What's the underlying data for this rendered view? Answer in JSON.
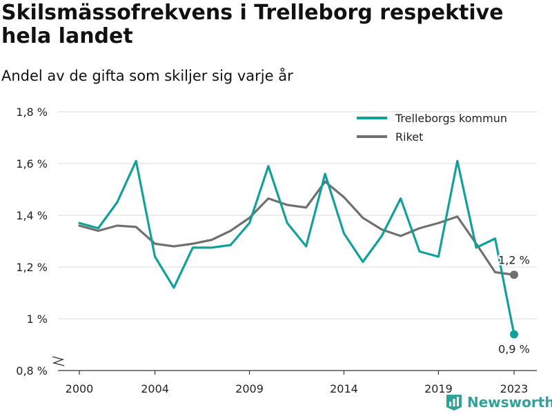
{
  "header": {
    "title": "Skilsmässofrekvens i Trelleborg respektive hela landet",
    "subtitle": "Andel av de gifta som skiljer sig varje år"
  },
  "brand": {
    "name": "Newsworthy",
    "icon": "bar-chart-logo-icon",
    "color": "#2fa39b"
  },
  "chart_data": {
    "type": "line",
    "x": [
      2000,
      2001,
      2002,
      2003,
      2004,
      2005,
      2006,
      2007,
      2008,
      2009,
      2010,
      2011,
      2012,
      2013,
      2014,
      2015,
      2016,
      2017,
      2018,
      2019,
      2020,
      2021,
      2022,
      2023
    ],
    "series": [
      {
        "name": "Trelleborgs kommun",
        "color": "#11a198",
        "values": [
          1.37,
          1.35,
          1.45,
          1.61,
          1.24,
          1.12,
          1.275,
          1.275,
          1.285,
          1.37,
          1.59,
          1.37,
          1.28,
          1.56,
          1.33,
          1.22,
          1.32,
          1.465,
          1.26,
          1.24,
          1.61,
          1.275,
          1.31,
          0.94
        ],
        "end_label": "0,9 %"
      },
      {
        "name": "Riket",
        "color": "#707070",
        "values": [
          1.36,
          1.34,
          1.36,
          1.355,
          1.29,
          1.28,
          1.29,
          1.305,
          1.34,
          1.39,
          1.465,
          1.44,
          1.43,
          1.53,
          1.47,
          1.39,
          1.345,
          1.32,
          1.35,
          1.37,
          1.395,
          1.29,
          1.18,
          1.17
        ],
        "end_label": "1,2 %"
      }
    ],
    "ylim": [
      0.8,
      1.8
    ],
    "y_ticks": [
      0.8,
      1.0,
      1.2,
      1.4,
      1.6,
      1.8
    ],
    "y_tick_labels": [
      "0,8 %",
      "1 %",
      "1,2 %",
      "1,4 %",
      "1,6 %",
      "1,8 %"
    ],
    "x_ticks": [
      2000,
      2004,
      2009,
      2014,
      2019,
      2023
    ],
    "x_tick_labels": [
      "2000",
      "2004",
      "2009",
      "2014",
      "2019",
      "2023"
    ],
    "axis_break": true,
    "grid": "horizontal",
    "legend_position": "top-right"
  }
}
